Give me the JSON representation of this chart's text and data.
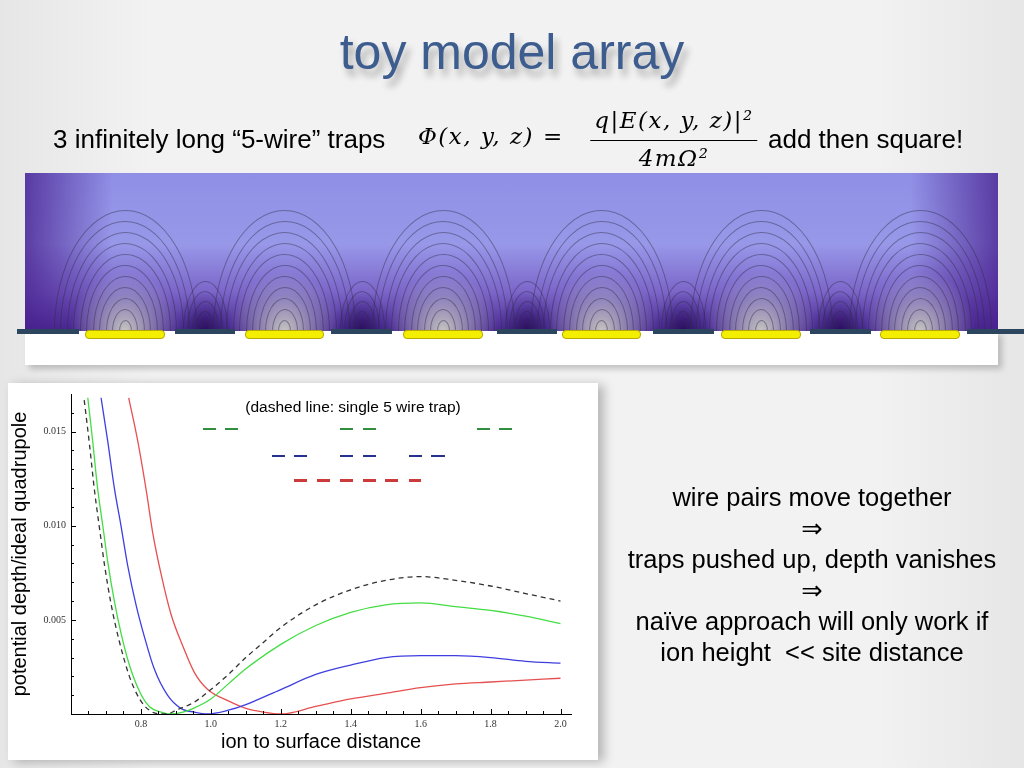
{
  "chart_data": {
    "type": "line",
    "title": "toy model array",
    "xlabel": "ion to surface distance",
    "ylabel": "potential depth/ideal quadrupole",
    "annotations": [
      "3 infinitely long “5-wire” traps",
      "Φ(x, y, z) =",
      "q|E(x, y, z)|²",
      "4mΩ²",
      "add then square!",
      "(dashed line: single 5 wire trap)",
      "wire pairs move together",
      "⇒",
      "traps pushed up, depth vanishes",
      "⇒",
      "naïve approach will only work if",
      "ion height  << site distance"
    ],
    "xlim": [
      0.6,
      2.03
    ],
    "ylim": [
      0,
      0.017
    ],
    "xticks": [
      {
        "value": 0.65,
        "label": null
      },
      {
        "value": 0.7,
        "label": null
      },
      {
        "value": 0.75,
        "label": null
      },
      0.8,
      {
        "value": 0.85,
        "label": null
      },
      {
        "value": 0.9,
        "label": null
      },
      {
        "value": 0.95,
        "label": null
      },
      {
        "value": 1,
        "label": "1.0"
      },
      {
        "value": 1.05,
        "label": null
      },
      {
        "value": 1.1,
        "label": null
      },
      {
        "value": 1.15,
        "label": null
      },
      1.2,
      {
        "value": 1.25,
        "label": null
      },
      {
        "value": 1.3,
        "label": null
      },
      {
        "value": 1.35,
        "label": null
      },
      1.4,
      {
        "value": 1.45,
        "label": null
      },
      {
        "value": 1.5,
        "label": null
      },
      {
        "value": 1.55,
        "label": null
      },
      1.6,
      {
        "value": 1.65,
        "label": null
      },
      {
        "value": 1.7,
        "label": null
      },
      {
        "value": 1.75,
        "label": null
      },
      1.8,
      {
        "value": 1.85,
        "label": null
      },
      {
        "value": 1.9,
        "label": null
      },
      {
        "value": 1.95,
        "label": null
      },
      {
        "value": 2,
        "label": "2.0"
      }
    ],
    "yticks": [
      {
        "value": 0.001,
        "label": null
      },
      {
        "value": 0.002,
        "label": null
      },
      {
        "value": 0.003,
        "label": null
      },
      {
        "value": 0.004,
        "label": null
      },
      0.005,
      {
        "value": 0.006,
        "label": null
      },
      {
        "value": 0.007,
        "label": null
      },
      {
        "value": 0.008,
        "label": null
      },
      {
        "value": 0.009,
        "label": null
      },
      {
        "value": 0.01,
        "label": "0.010"
      },
      {
        "value": 0.011,
        "label": null
      },
      {
        "value": 0.012,
        "label": null
      },
      {
        "value": 0.013,
        "label": null
      },
      {
        "value": 0.014,
        "label": null
      },
      0.015,
      {
        "value": 0.016,
        "label": null
      }
    ],
    "grid": false,
    "legend": false,
    "marker": "none",
    "series": [
      {
        "color": "#333333",
        "line_style": "dashed",
        "x": [
          0.637,
          0.653,
          0.667,
          0.682,
          0.696,
          0.715,
          0.739,
          0.767,
          0.796,
          0.824,
          0.858,
          0.875,
          0.9,
          0.95,
          1.0,
          1.05,
          1.1,
          1.15,
          1.2,
          1.3,
          1.4,
          1.5,
          1.6,
          1.7,
          1.8,
          1.9,
          2.0
        ],
        "values": [
          0.0168,
          0.0143,
          0.0119,
          0.0098,
          0.0079,
          0.0058,
          0.0038,
          0.002,
          0.0008,
          0.0002,
          0,
          0,
          0.0002,
          0.0006,
          0.0013,
          0.0021,
          0.003,
          0.0038,
          0.0046,
          0.0058,
          0.0066,
          0.0071,
          0.0073,
          0.0071,
          0.0068,
          0.0064,
          0.006
        ]
      },
      {
        "color": "#44dd44",
        "x": [
          0.648,
          0.662,
          0.676,
          0.691,
          0.705,
          0.724,
          0.743,
          0.767,
          0.796,
          0.824,
          0.858,
          0.885,
          0.92,
          0.95,
          1.0,
          1.05,
          1.1,
          1.2,
          1.3,
          1.4,
          1.5,
          1.6,
          1.7,
          1.8,
          1.9,
          2.0
        ],
        "values": [
          0.0168,
          0.0145,
          0.012,
          0.01,
          0.0081,
          0.006,
          0.0043,
          0.0026,
          0.0012,
          0.0004,
          0.0001,
          0,
          0.0001,
          0.0003,
          0.0008,
          0.0016,
          0.0024,
          0.0037,
          0.0047,
          0.0054,
          0.0058,
          0.0059,
          0.0057,
          0.0055,
          0.0052,
          0.0048
        ]
      },
      {
        "color": "#3f3fe0",
        "x": [
          0.686,
          0.705,
          0.724,
          0.743,
          0.762,
          0.786,
          0.81,
          0.838,
          0.876,
          0.914,
          0.953,
          0.99,
          1.05,
          1.1,
          1.2,
          1.3,
          1.4,
          1.5,
          1.6,
          1.7,
          1.8,
          1.9,
          2.0
        ],
        "values": [
          0.0168,
          0.0145,
          0.012,
          0.01,
          0.0079,
          0.0058,
          0.0041,
          0.0024,
          0.001,
          0.0003,
          0.0001,
          0,
          0.0002,
          0.0005,
          0.0013,
          0.0021,
          0.0026,
          0.003,
          0.0031,
          0.0031,
          0.003,
          0.0028,
          0.0027
        ]
      },
      {
        "color": "#e65050",
        "x": [
          0.765,
          0.791,
          0.815,
          0.834,
          0.858,
          0.886,
          0.92,
          0.953,
          0.991,
          1.05,
          1.1,
          1.15,
          1.2,
          1.3,
          1.4,
          1.5,
          1.6,
          1.7,
          1.8,
          1.9,
          2.0
        ],
        "values": [
          0.0168,
          0.0145,
          0.0119,
          0.0096,
          0.0074,
          0.0053,
          0.0036,
          0.0022,
          0.0013,
          0.0007,
          0.0003,
          0.0001,
          0,
          0.0004,
          0.0008,
          0.0011,
          0.0014,
          0.0016,
          0.0017,
          0.0018,
          0.0019
        ]
      }
    ]
  }
}
